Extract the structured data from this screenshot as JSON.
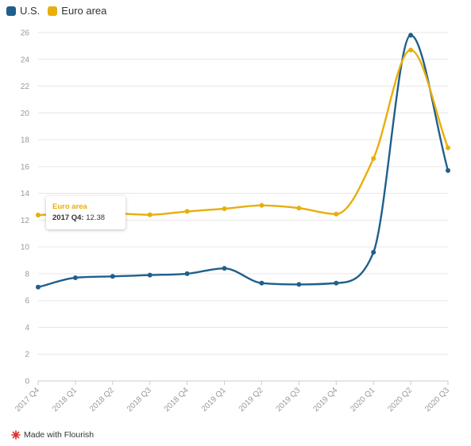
{
  "colors": {
    "us": "#1f5f8b",
    "euro": "#e8ae0c",
    "grid": "#e6e6e6",
    "axis": "#cccccc"
  },
  "legend": {
    "items": [
      {
        "label": "U.S.",
        "color": "#1f5f8b"
      },
      {
        "label": "Euro area",
        "color": "#e8ae0c"
      }
    ]
  },
  "chart_data": {
    "type": "line",
    "x": [
      "2017 Q4",
      "2018 Q1",
      "2018 Q2",
      "2018 Q3",
      "2018 Q4",
      "2019 Q1",
      "2019 Q2",
      "2019 Q3",
      "2019 Q4",
      "2020 Q1",
      "2020 Q2",
      "2020 Q3"
    ],
    "series": [
      {
        "name": "U.S.",
        "color": "#1f5f8b",
        "values": [
          7.0,
          7.7,
          7.8,
          7.9,
          8.0,
          8.4,
          7.3,
          7.2,
          7.3,
          9.6,
          25.8,
          15.7
        ]
      },
      {
        "name": "Euro area",
        "color": "#e8ae0c",
        "values": [
          12.38,
          12.5,
          12.5,
          12.4,
          12.65,
          12.85,
          13.1,
          12.9,
          12.45,
          16.6,
          24.7,
          17.4
        ]
      }
    ],
    "ylim": [
      0,
      26
    ],
    "yticks": [
      0,
      2,
      4,
      6,
      8,
      10,
      12,
      14,
      16,
      18,
      20,
      22,
      24,
      26
    ],
    "grid": true,
    "legend": "top-left"
  },
  "tooltip": {
    "series": "Euro area",
    "period": "2017 Q4:",
    "value": "12.38"
  },
  "footer": {
    "label": "Made with Flourish",
    "icon": "flourish-logo-icon"
  }
}
